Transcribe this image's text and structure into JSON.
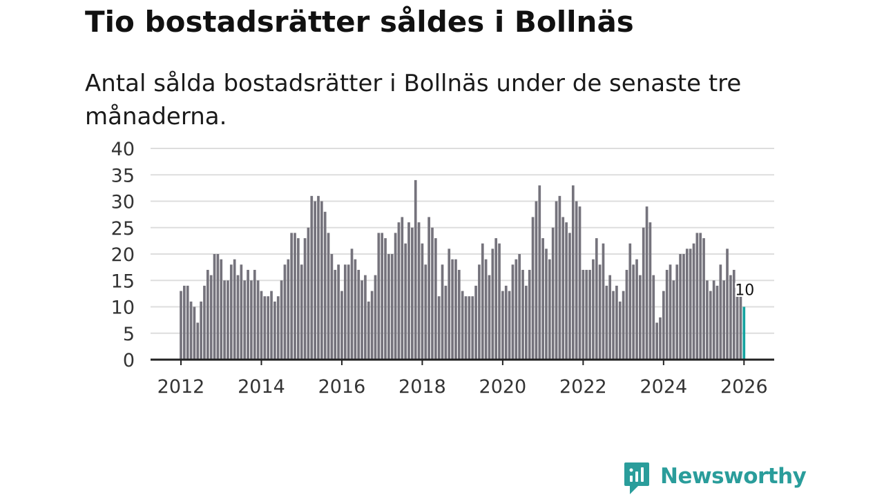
{
  "header": {
    "title": "Tio bostadsrätter såldes i Bollnäs",
    "subtitle": "Antal sålda bostadsrätter i Bollnäs under de senaste tre månaderna."
  },
  "brand": {
    "name": "Newsworthy",
    "icon": "chart-bubble-icon",
    "color": "#2a9d9b"
  },
  "colors": {
    "bar": "#75737c",
    "highlight": "#14a3a0",
    "grid": "#dddddd",
    "axis": "#222222"
  },
  "chart_data": {
    "type": "bar",
    "title": "Tio bostadsrätter såldes i Bollnäs",
    "subtitle": "Antal sålda bostadsrätter i Bollnäs under de senaste tre månaderna.",
    "xlabel": "",
    "ylabel": "",
    "ylim": [
      0,
      40
    ],
    "yticks": [
      0,
      5,
      10,
      15,
      20,
      25,
      30,
      35,
      40
    ],
    "xticks": [
      2012,
      2014,
      2016,
      2018,
      2020,
      2022,
      2024,
      2026
    ],
    "x_start": "2012-01",
    "x_step": "month",
    "grid": true,
    "values": [
      13,
      14,
      14,
      11,
      10,
      7,
      11,
      14,
      17,
      16,
      20,
      20,
      19,
      15,
      15,
      18,
      19,
      16,
      18,
      15,
      17,
      15,
      17,
      15,
      13,
      12,
      12,
      13,
      11,
      12,
      15,
      18,
      19,
      24,
      24,
      23,
      18,
      23,
      25,
      31,
      30,
      31,
      30,
      28,
      24,
      20,
      17,
      18,
      13,
      18,
      18,
      21,
      19,
      17,
      15,
      16,
      11,
      13,
      16,
      24,
      24,
      23,
      20,
      20,
      24,
      26,
      27,
      22,
      26,
      25,
      34,
      26,
      22,
      18,
      27,
      25,
      23,
      12,
      18,
      14,
      21,
      19,
      19,
      17,
      13,
      12,
      12,
      12,
      14,
      18,
      22,
      19,
      16,
      21,
      23,
      22,
      13,
      14,
      13,
      18,
      19,
      20,
      17,
      14,
      17,
      27,
      30,
      33,
      23,
      21,
      19,
      25,
      30,
      31,
      27,
      26,
      24,
      33,
      30,
      29,
      17,
      17,
      17,
      19,
      23,
      18,
      22,
      14,
      16,
      13,
      14,
      11,
      13,
      17,
      22,
      18,
      19,
      16,
      25,
      29,
      26,
      16,
      7,
      8,
      13,
      17,
      18,
      15,
      18,
      20,
      20,
      21,
      21,
      22,
      24,
      24,
      23,
      15,
      13,
      15,
      14,
      18,
      15,
      21,
      16,
      17,
      12,
      12,
      10
    ],
    "highlight_last": true,
    "last_label": "10"
  }
}
